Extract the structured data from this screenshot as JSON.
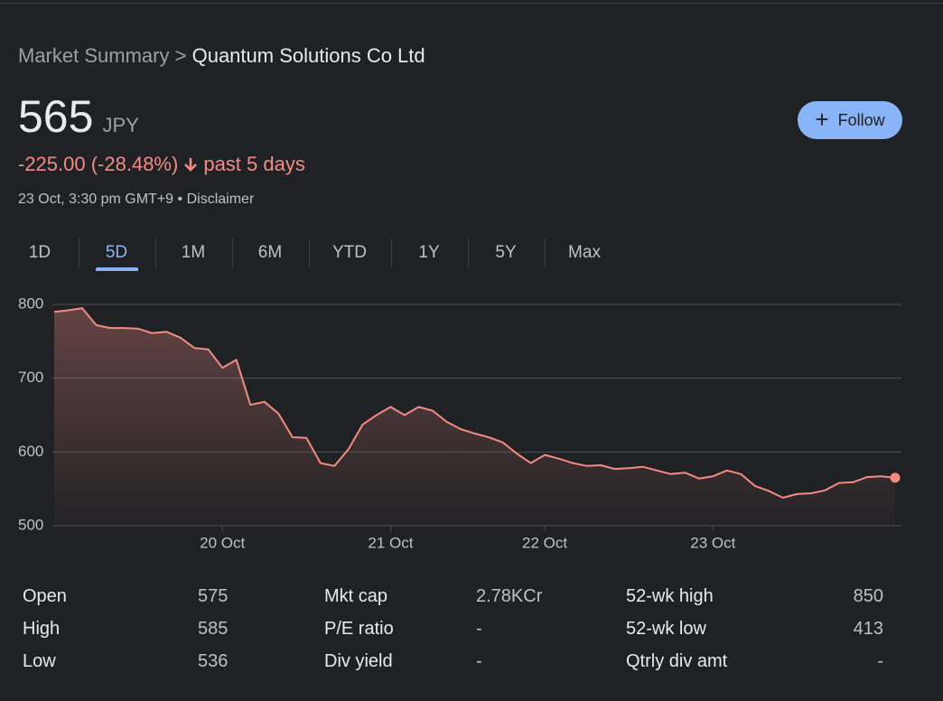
{
  "header": {
    "breadcrumb": "Market Summary",
    "separator": ">",
    "company": "Quantum Solutions Co Ltd"
  },
  "quote": {
    "price": "565",
    "currency": "JPY",
    "change": "-225.00 (-28.48%)",
    "period": "past 5 days",
    "timestamp": "23 Oct, 3:30 pm GMT+9",
    "bullet": "•",
    "disclaimer": "Disclaimer"
  },
  "follow_button": {
    "icon": "+",
    "label": "Follow"
  },
  "tabs": {
    "items": [
      "1D",
      "5D",
      "1M",
      "6M",
      "YTD",
      "1Y",
      "5Y",
      "Max"
    ],
    "active": 1
  },
  "chart_data": {
    "type": "line",
    "color": "#f28b82",
    "categories": [
      null,
      null,
      null,
      null,
      null,
      null,
      null,
      null,
      null,
      null,
      null,
      null,
      "20 Oct",
      null,
      null,
      null,
      null,
      null,
      null,
      null,
      null,
      null,
      null,
      null,
      "21 Oct",
      null,
      null,
      null,
      null,
      null,
      null,
      null,
      null,
      null,
      null,
      "22 Oct",
      null,
      null,
      null,
      null,
      null,
      null,
      null,
      null,
      null,
      null,
      null,
      "23 Oct",
      null,
      null,
      null,
      null,
      null,
      null,
      null,
      null,
      null,
      null,
      null,
      null,
      null
    ],
    "values": [
      790,
      792,
      795,
      772,
      768,
      768,
      767,
      761,
      763,
      755,
      741,
      739,
      714,
      725,
      664,
      668,
      652,
      620,
      619,
      585,
      581,
      604,
      637,
      650,
      661,
      650,
      661,
      656,
      641,
      631,
      625,
      620,
      613,
      598,
      585,
      596,
      591,
      585,
      581,
      582,
      577,
      578,
      580,
      575,
      570,
      572,
      564,
      567,
      575,
      570,
      554,
      547,
      538,
      543,
      544,
      548,
      558,
      559,
      566,
      567,
      565
    ],
    "ylim": [
      500,
      800
    ],
    "yticks": [
      500,
      600,
      700,
      800
    ],
    "grid": true
  },
  "stats": [
    [
      [
        "Open",
        "575"
      ],
      [
        "High",
        "585"
      ],
      [
        "Low",
        "536"
      ]
    ],
    [
      [
        "Mkt cap",
        "2.78KCr"
      ],
      [
        "P/E ratio",
        "-"
      ],
      [
        "Div yield",
        "-"
      ]
    ],
    [
      [
        "52-wk high",
        "850"
      ],
      [
        "52-wk low",
        "413"
      ],
      [
        "Qtrly div amt",
        "-"
      ]
    ]
  ]
}
